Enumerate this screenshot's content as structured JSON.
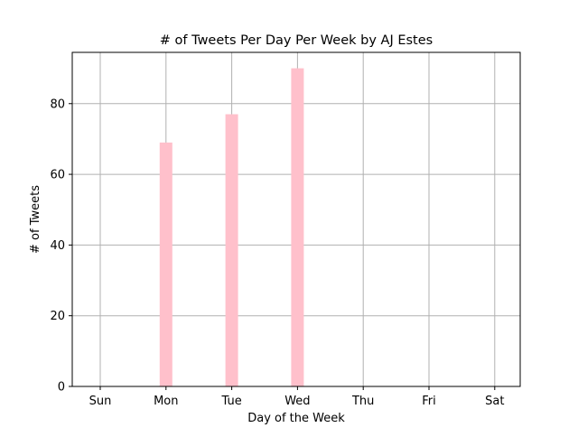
{
  "chart_data": {
    "type": "bar",
    "title": "# of Tweets Per Day Per Week by AJ Estes",
    "xlabel": "Day of the Week",
    "ylabel": "# of Tweets",
    "categories": [
      "Sun",
      "Mon",
      "Tue",
      "Wed",
      "Thu",
      "Fri",
      "Sat"
    ],
    "values": [
      0,
      69,
      77,
      90,
      0,
      0,
      0
    ],
    "ylim": [
      0,
      94.5
    ],
    "yticks": [
      0,
      20,
      40,
      60,
      80
    ],
    "grid": true,
    "bar_color": "#ffc0cb",
    "grid_color": "#b0b0b0"
  }
}
